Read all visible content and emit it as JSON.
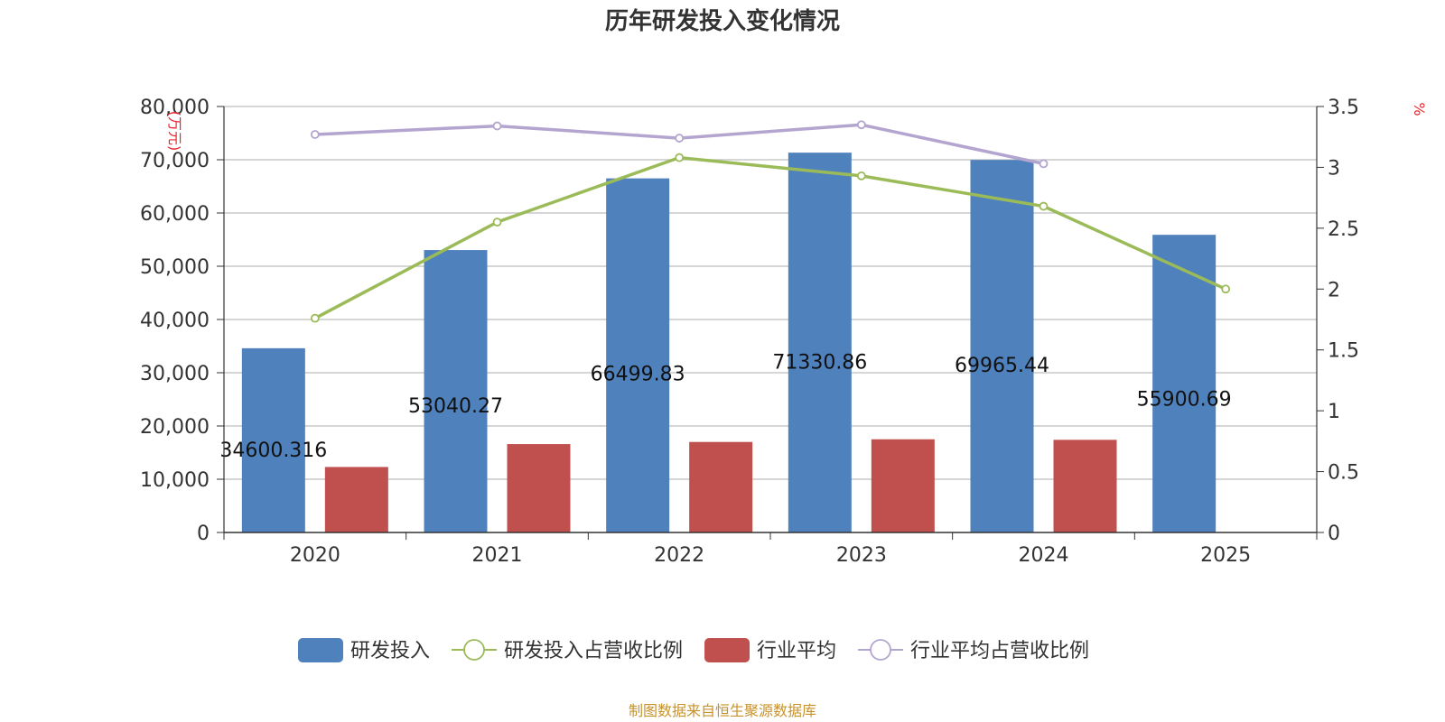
{
  "chart_data": {
    "type": "bar",
    "title": "历年研发投入变化情况",
    "categories": [
      "2020",
      "2021",
      "2022",
      "2023",
      "2024",
      "2025"
    ],
    "y_left": {
      "unit": "(万元)",
      "min": 0,
      "max": 80000,
      "ticks": [
        "0",
        "10,000",
        "20,000",
        "30,000",
        "40,000",
        "50,000",
        "60,000",
        "70,000",
        "80,000"
      ]
    },
    "y_right": {
      "unit": "%",
      "min": 0,
      "max": 3.5,
      "ticks": [
        "0",
        "0.5",
        "1",
        "1.5",
        "2",
        "2.5",
        "3",
        "3.5"
      ]
    },
    "series": [
      {
        "name": "研发投入",
        "kind": "bar",
        "axis": "left",
        "color": "#4f81bd",
        "values": [
          34600.316,
          53040.27,
          66499.83,
          71330.86,
          69965.44,
          55900.69
        ],
        "labels": [
          "34600.316",
          "53040.27",
          "66499.83",
          "71330.86",
          "69965.44",
          "55900.69"
        ]
      },
      {
        "name": "研发投入占营收比例",
        "kind": "line",
        "axis": "right",
        "color": "#9bbb59",
        "values": [
          1.76,
          2.55,
          3.08,
          2.93,
          2.68,
          2.0
        ]
      },
      {
        "name": "行业平均",
        "kind": "bar",
        "axis": "left",
        "color": "#c0504d",
        "values": [
          12300,
          16600,
          17000,
          17500,
          17400,
          null
        ]
      },
      {
        "name": "行业平均占营收比例",
        "kind": "line",
        "axis": "right",
        "color": "#b3a5cf",
        "values": [
          3.27,
          3.34,
          3.24,
          3.35,
          3.03,
          null
        ]
      }
    ],
    "legend_position": "bottom",
    "grid": true
  },
  "footer": {
    "source": "制图数据来自恒生聚源数据库"
  }
}
